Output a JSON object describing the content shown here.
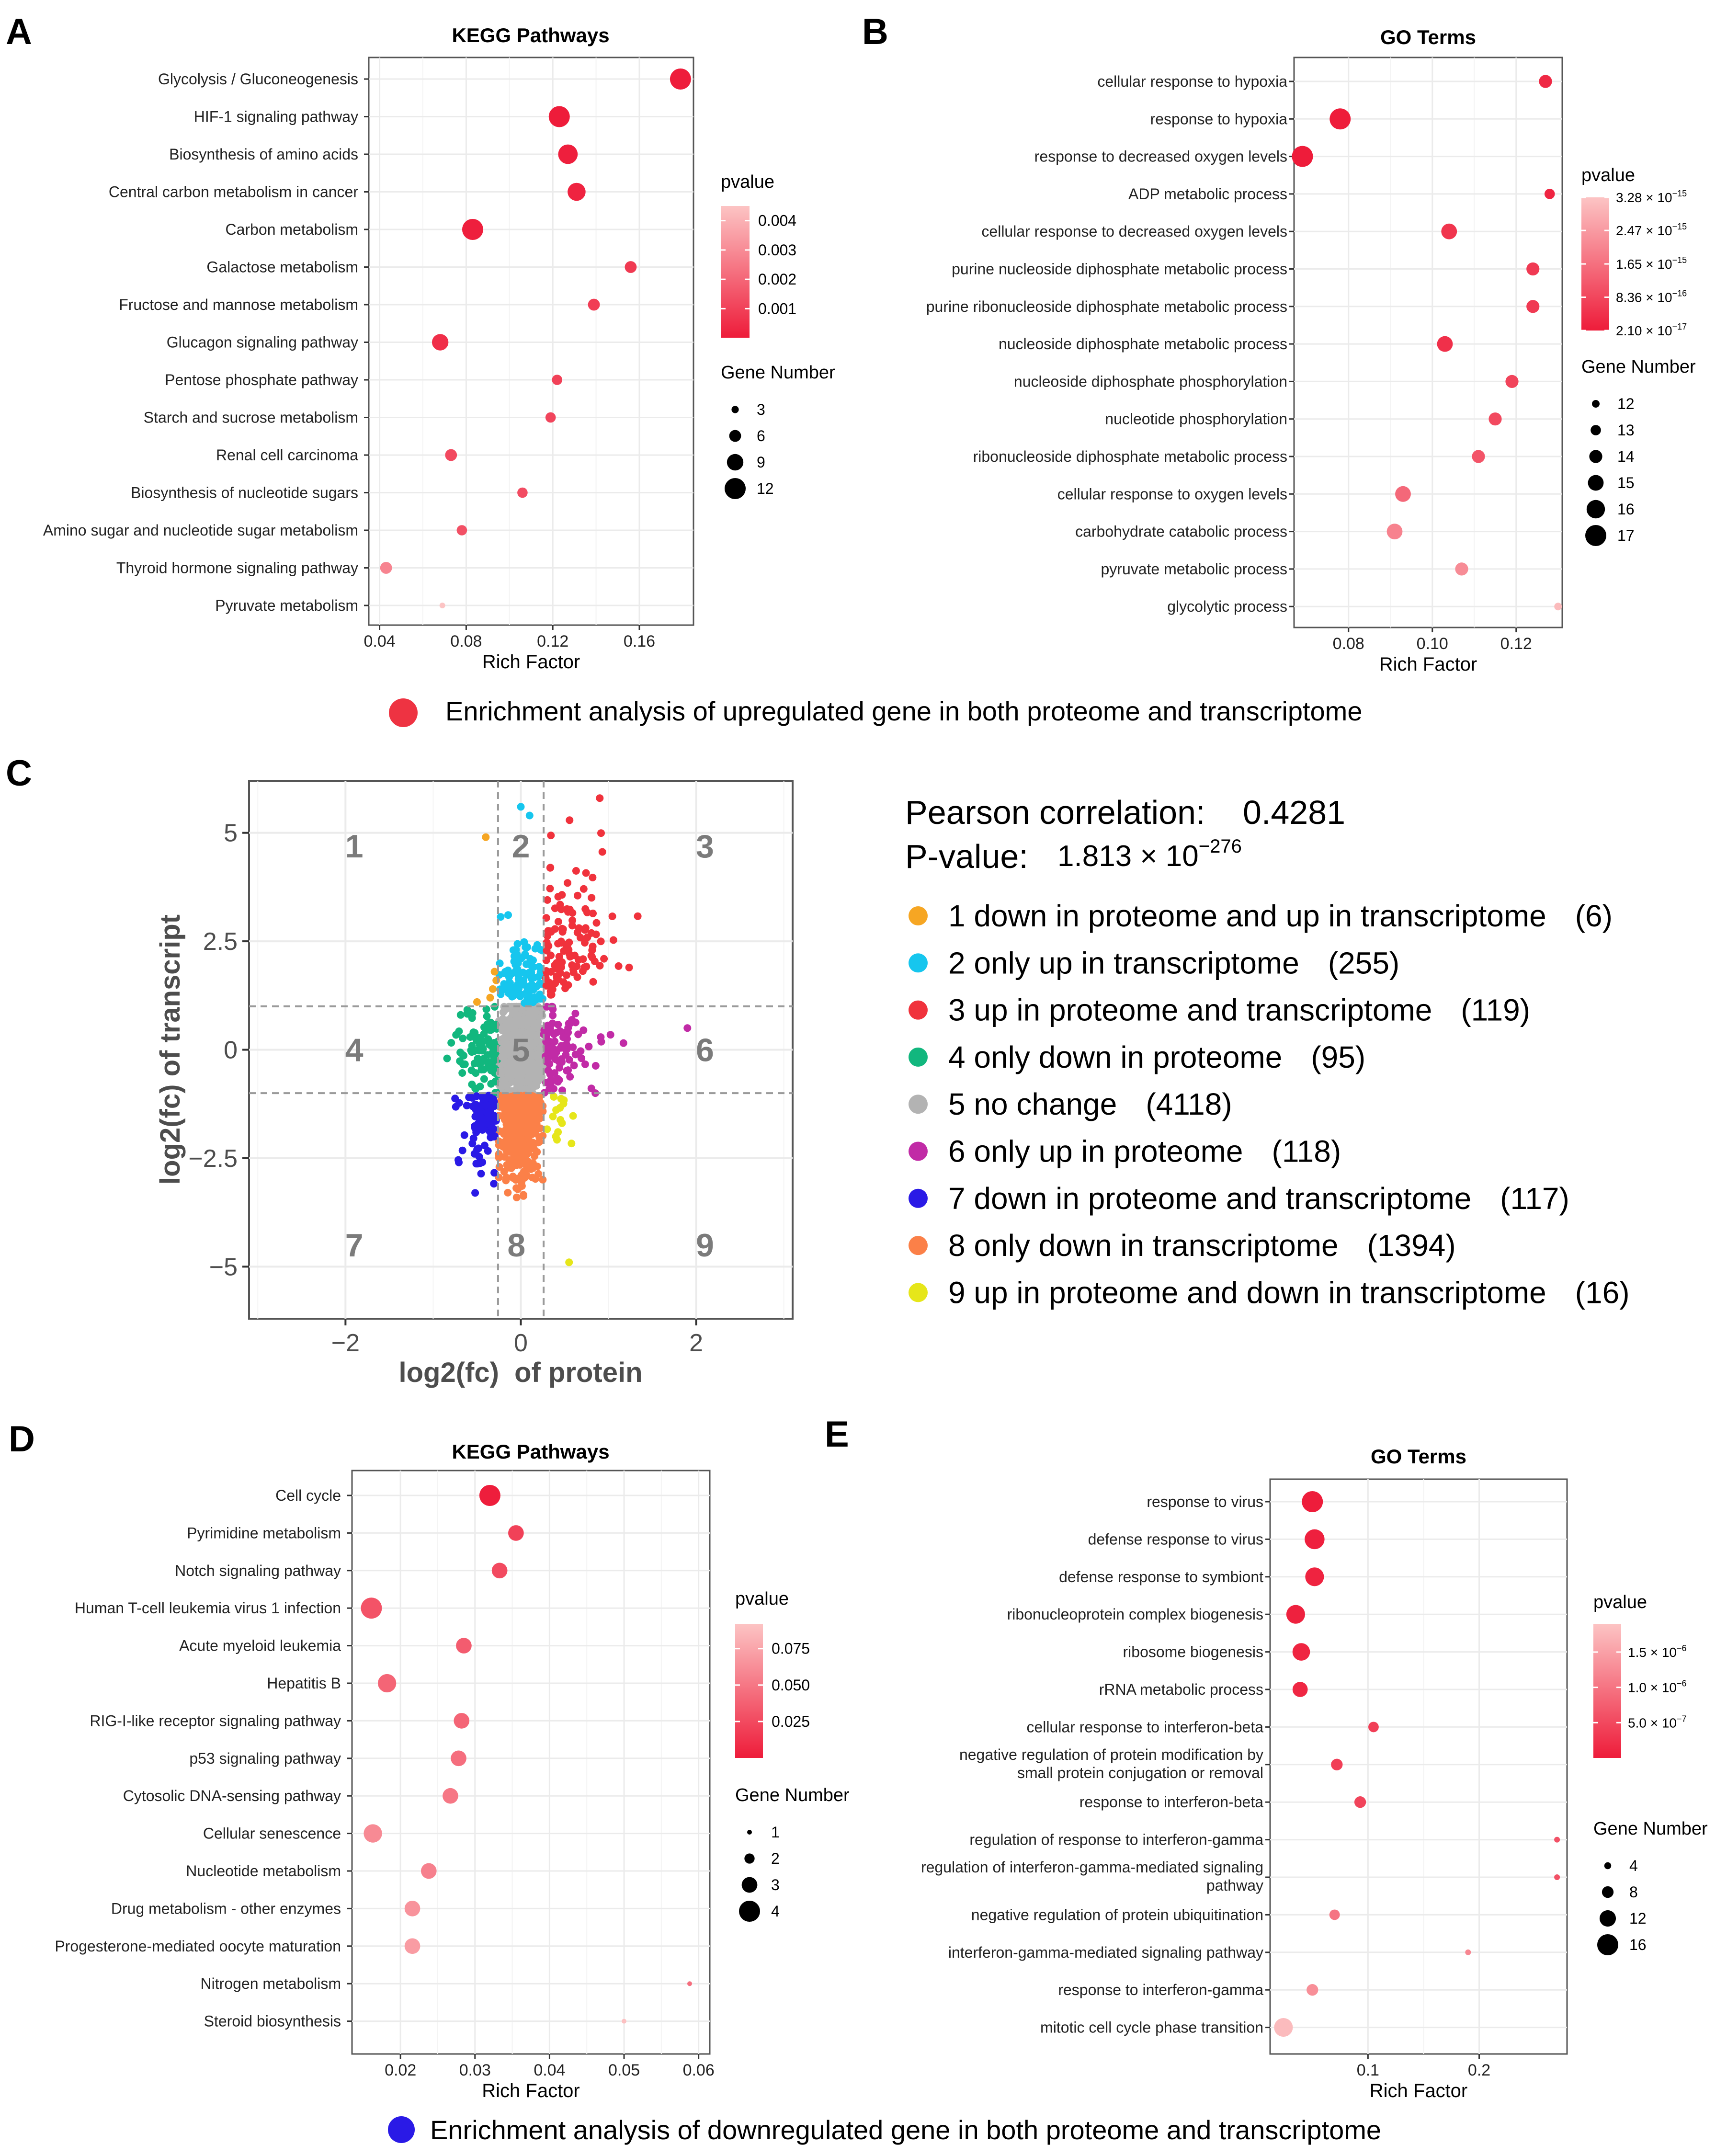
{
  "colors": {
    "pvalue_low": "#ee1c3a",
    "pvalue_high": "#fcc4c4",
    "up_marker": "#ee3342",
    "down_marker": "#2a1ae6",
    "panel_border": "#555555",
    "grid": "#ebebeb",
    "axis_text": "#4d4d4d"
  },
  "panel_labels": [
    "A",
    "B",
    "C",
    "D",
    "E"
  ],
  "captions": {
    "upregulated": "Enrichment analysis of upregulated gene in both proteome and transcriptome",
    "downregulated": "Enrichment analysis of downregulated gene in both proteome and transcriptome"
  },
  "chart_data": [
    {
      "id": "A",
      "type": "scatter",
      "title": "KEGG Pathways",
      "xlabel": "Rich Factor",
      "ylabel": "",
      "xlim": [
        0.035,
        0.185
      ],
      "x_ticks": [
        0.04,
        0.08,
        0.12,
        0.16
      ],
      "x_tick_labels": [
        "0.04",
        "0.08",
        "0.12",
        "0.16"
      ],
      "categories": [
        "Glycolysis / Gluconeogenesis",
        "HIF-1 signaling pathway",
        "Biosynthesis of amino acids",
        "Central carbon metabolism in cancer",
        "Carbon metabolism",
        "Galactose metabolism",
        "Fructose and mannose metabolism",
        "Glucagon signaling pathway",
        "Pentose phosphate pathway",
        "Starch and sucrose metabolism",
        "Renal cell carcinoma",
        "Biosynthesis of nucleotide sugars",
        "Amino sugar and nucleotide sugar metabolism",
        "Thyroid hormone signaling pathway",
        "Pyruvate metabolism"
      ],
      "rich_factor": [
        0.179,
        0.123,
        0.127,
        0.131,
        0.083,
        0.156,
        0.139,
        0.068,
        0.122,
        0.119,
        0.073,
        0.106,
        0.078,
        0.043,
        0.069
      ],
      "gene_number": [
        12,
        12,
        11,
        10,
        12,
        6,
        6,
        9,
        5,
        5,
        6,
        5,
        5,
        6,
        2
      ],
      "pvalue": [
        5e-05,
        2e-05,
        0.0001,
        0.0002,
        0.0001,
        0.0008,
        0.0009,
        0.0005,
        0.001,
        0.0011,
        0.0012,
        0.0013,
        0.0014,
        0.0028,
        0.0045
      ],
      "pvalue_legend": {
        "title": "pvalue",
        "range": [
          1e-05,
          0.0045
        ],
        "ticks": [
          0.004,
          0.003,
          0.002,
          0.001
        ],
        "tick_labels": [
          "0.004",
          "0.003",
          "0.002",
          "0.001"
        ]
      },
      "size_legend": {
        "title": "Gene Number",
        "range": [
          2,
          12
        ],
        "values": [
          3,
          6,
          9,
          12
        ],
        "labels": [
          "3",
          "6",
          "9",
          "12"
        ]
      }
    },
    {
      "id": "B",
      "type": "scatter",
      "title": "GO Terms",
      "xlabel": "Rich Factor",
      "ylabel": "",
      "xlim": [
        0.067,
        0.131
      ],
      "x_ticks": [
        0.08,
        0.1,
        0.12
      ],
      "x_tick_labels": [
        "0.08",
        "0.10",
        "0.12"
      ],
      "categories": [
        "cellular response to hypoxia",
        "response to hypoxia",
        "response to decreased oxygen levels",
        "ADP metabolic process",
        "cellular response to decreased oxygen levels",
        "purine nucleoside diphosphate metabolic process",
        "purine ribonucleoside diphosphate metabolic process",
        "nucleoside diphosphate metabolic process",
        "nucleoside diphosphate phosphorylation",
        "nucleotide phosphorylation",
        "ribonucleoside diphosphate metabolic process",
        "cellular response to oxygen levels",
        "carbohydrate catabolic process",
        "pyruvate metabolic process",
        "glycolytic process"
      ],
      "rich_factor": [
        0.127,
        0.078,
        0.069,
        0.128,
        0.104,
        0.124,
        0.124,
        0.103,
        0.119,
        0.115,
        0.111,
        0.093,
        0.091,
        0.107,
        0.13
      ],
      "gene_number": [
        14,
        17,
        17,
        13,
        15,
        14,
        14,
        15,
        14,
        14,
        14,
        15,
        15,
        14,
        12
      ],
      "pvalue": [
        2.5e-16,
        2.1e-17,
        2.1e-17,
        2e-16,
        5e-16,
        6e-16,
        6e-16,
        4e-16,
        8e-16,
        9e-16,
        1.1e-15,
        1.5e-15,
        2e-15,
        2.2e-15,
        3.1e-15
      ],
      "pvalue_legend": {
        "title": "pvalue",
        "range": [
          2.1e-17,
          3.28e-15
        ],
        "ticks": [
          3.28e-15,
          2.47e-15,
          1.65e-15,
          8.36e-16,
          2.1e-17
        ],
        "tick_mantissa": [
          "3.28 × 10",
          "2.47 × 10",
          "1.65 × 10",
          "8.36 × 10",
          "2.10 × 10"
        ],
        "tick_exponent": [
          "−15",
          "−15",
          "−15",
          "−16",
          "−17"
        ]
      },
      "size_legend": {
        "title": "Gene Number",
        "range": [
          12,
          17
        ],
        "values": [
          12,
          13,
          14,
          15,
          16,
          17
        ],
        "labels": [
          "12",
          "13",
          "14",
          "15",
          "16",
          "17"
        ]
      }
    },
    {
      "id": "C",
      "type": "scatter",
      "title": "",
      "xlabel": "log2(fc)  of protein",
      "ylabel": "log2(fc) of transcript",
      "xlim": [
        -3.1,
        3.1
      ],
      "ylim": [
        -6.2,
        6.2
      ],
      "x_ticks": [
        -2,
        0,
        2
      ],
      "x_tick_labels": [
        "−2",
        "0",
        "2"
      ],
      "y_ticks": [
        5,
        2.5,
        0,
        -2.5,
        -5
      ],
      "y_tick_labels": [
        "5",
        "2.5",
        "0",
        "−2.5",
        "−5"
      ],
      "thresholds": {
        "x": [
          -0.26,
          0.26
        ],
        "y": [
          -1,
          1
        ]
      },
      "pearson": {
        "label": "Pearson correlation:",
        "value": "0.4281"
      },
      "pvalue": {
        "label": "P-value:",
        "mantissa": "1.813 × 10",
        "exponent": "−276"
      },
      "region_labels": [
        {
          "text": "1",
          "x": -1.9,
          "y": 4.7
        },
        {
          "text": "2",
          "x": 0.0,
          "y": 4.7
        },
        {
          "text": "3",
          "x": 2.1,
          "y": 4.7
        },
        {
          "text": "4",
          "x": -1.9,
          "y": 0.0
        },
        {
          "text": "5",
          "x": 0.0,
          "y": 0.0
        },
        {
          "text": "6",
          "x": 2.1,
          "y": 0.0
        },
        {
          "text": "7",
          "x": -1.9,
          "y": -4.5
        },
        {
          "text": "8",
          "x": -0.05,
          "y": -4.5
        },
        {
          "text": "9",
          "x": 2.1,
          "y": -4.5
        }
      ],
      "groups": [
        {
          "id": 1,
          "label": "1 down in proteome and up in transcriptome",
          "count": "(6)",
          "color": "#f6a623"
        },
        {
          "id": 2,
          "label": "2 only up in transcriptome",
          "count": "(255)",
          "color": "#16c6ee"
        },
        {
          "id": 3,
          "label": "3 up in proteome and transcriptome",
          "count": "(119)",
          "color": "#f0323c"
        },
        {
          "id": 4,
          "label": "4 only down in proteome",
          "count": "(95)",
          "color": "#12b77e"
        },
        {
          "id": 5,
          "label": "5 no change",
          "count": "(4118)",
          "color": "#b3b3b3"
        },
        {
          "id": 6,
          "label": "6 only up in proteome",
          "count": "(118)",
          "color": "#c12ba6"
        },
        {
          "id": 7,
          "label": "7 down in proteome and transcriptome",
          "count": "(117)",
          "color": "#2a1ae6"
        },
        {
          "id": 8,
          "label": "8 only down in transcriptome",
          "count": "(1394)",
          "color": "#fb8048"
        },
        {
          "id": 9,
          "label": "9 up in proteome and down in transcriptome",
          "count": "(16)",
          "color": "#e6e61a"
        }
      ]
    },
    {
      "id": "D",
      "type": "scatter",
      "title": "KEGG Pathways",
      "xlabel": "Rich Factor",
      "ylabel": "",
      "xlim": [
        0.0135,
        0.0615
      ],
      "x_ticks": [
        0.02,
        0.03,
        0.04,
        0.05,
        0.06
      ],
      "x_tick_labels": [
        "0.02",
        "0.03",
        "0.04",
        "0.05",
        "0.06"
      ],
      "categories": [
        "Cell cycle",
        "Pyrimidine metabolism",
        "Notch signaling pathway",
        "Human T-cell leukemia virus 1 infection",
        "Acute myeloid leukemia",
        "Hepatitis B",
        "RIG-I-like receptor signaling pathway",
        "p53 signaling pathway",
        "Cytosolic DNA-sensing pathway",
        "Cellular senescence",
        "Nucleotide metabolism",
        "Drug metabolism - other enzymes",
        "Progesterone-mediated oocyte maturation",
        "Nitrogen metabolism",
        "Steroid biosynthesis"
      ],
      "rich_factor": [
        0.032,
        0.0355,
        0.0333,
        0.0161,
        0.0285,
        0.0182,
        0.0282,
        0.0278,
        0.0267,
        0.0163,
        0.0238,
        0.0216,
        0.0216,
        0.0588,
        0.05
      ],
      "gene_number": [
        4,
        3,
        3,
        4,
        3,
        3.5,
        3,
        3,
        3,
        3.5,
        3,
        3,
        3,
        1,
        1
      ],
      "pvalue": [
        0.001,
        0.02,
        0.025,
        0.03,
        0.035,
        0.04,
        0.04,
        0.045,
        0.05,
        0.06,
        0.055,
        0.065,
        0.07,
        0.045,
        0.09
      ],
      "pvalue_legend": {
        "title": "pvalue",
        "range": [
          0.0,
          0.092
        ],
        "ticks": [
          0.075,
          0.05,
          0.025
        ],
        "tick_labels": [
          "0.075",
          "0.050",
          "0.025"
        ]
      },
      "size_legend": {
        "title": "Gene Number",
        "range": [
          1,
          4
        ],
        "values": [
          1,
          2,
          3,
          4
        ],
        "labels": [
          "1",
          "2",
          "3",
          "4"
        ]
      }
    },
    {
      "id": "E",
      "type": "scatter",
      "title": "GO Terms",
      "xlabel": "Rich Factor",
      "ylabel": "",
      "xlim": [
        0.012,
        0.279
      ],
      "x_ticks": [
        0.1,
        0.2
      ],
      "x_tick_labels": [
        "0.1",
        "0.2"
      ],
      "categories": [
        "response to virus",
        "defense response to virus",
        "defense response to symbiont",
        "ribonucleoprotein complex biogenesis",
        "ribosome biogenesis",
        "rRNA metabolic process",
        "cellular response to interferon-beta",
        "negative regulation of protein modification by|small protein conjugation or removal",
        "response to interferon-beta",
        "regulation of response to interferon-gamma",
        "regulation of interferon-gamma-mediated signaling|pathway",
        "negative regulation of protein ubiquitination",
        "interferon-gamma-mediated signaling pathway",
        "response to interferon-gamma",
        "mitotic cell cycle phase transition"
      ],
      "rich_factor": [
        0.05,
        0.052,
        0.052,
        0.035,
        0.04,
        0.039,
        0.105,
        0.072,
        0.093,
        0.27,
        0.27,
        0.07,
        0.19,
        0.05,
        0.024
      ],
      "gene_number": [
        16,
        15,
        14,
        14,
        13,
        11,
        7,
        8,
        8,
        3,
        3,
        7,
        3,
        8,
        14
      ],
      "pvalue": [
        1e-08,
        5e-08,
        8e-08,
        6e-08,
        1e-07,
        1.2e-07,
        4e-07,
        4e-07,
        4.5e-07,
        6e-07,
        6e-07,
        1e-06,
        1.2e-06,
        1.3e-06,
        1.8e-06
      ],
      "pvalue_legend": {
        "title": "pvalue",
        "range": [
          0.0,
          1.9e-06
        ],
        "ticks": [
          1.5e-06,
          1e-06,
          5e-07
        ],
        "tick_mantissa": [
          "1.5 × 10",
          "1.0 × 10",
          "5.0 × 10"
        ],
        "tick_exponent": [
          "−6",
          "−6",
          "−7"
        ]
      },
      "size_legend": {
        "title": "Gene Number",
        "range": [
          3,
          16
        ],
        "values": [
          4,
          8,
          12,
          16
        ],
        "labels": [
          "4",
          "8",
          "12",
          "16"
        ]
      }
    }
  ]
}
